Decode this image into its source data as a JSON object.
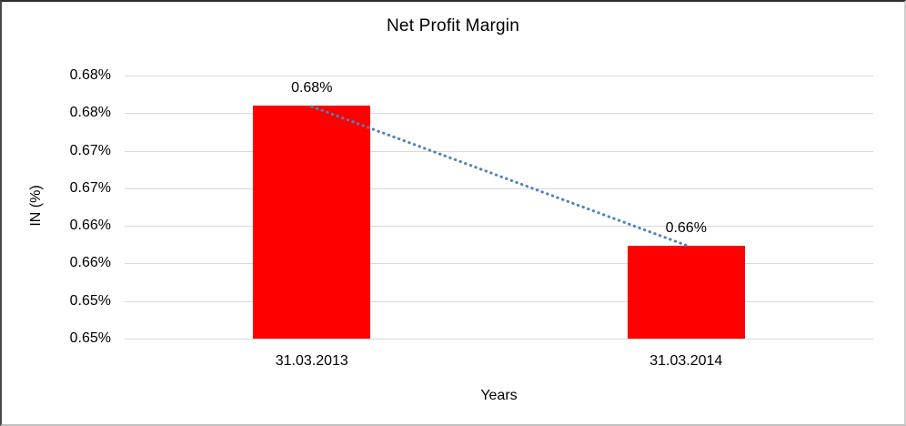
{
  "chart_data": {
    "type": "bar",
    "title": "Net Profit Margin",
    "xlabel": "Years",
    "ylabel": "IN (%)",
    "categories": [
      "31.03.2013",
      "31.03.2014"
    ],
    "values": [
      0.676,
      0.6573
    ],
    "data_labels": [
      "0.68%",
      "0.66%"
    ],
    "unit": "percent",
    "ylim": [
      0.645,
      0.68
    ],
    "ytick_step": 0.005,
    "ytick_labels_bottom_to_top": [
      "0.65%",
      "0.65%",
      "0.66%",
      "0.66%",
      "0.67%",
      "0.67%",
      "0.68%",
      "0.68%"
    ],
    "grid": true,
    "legend": "none",
    "colors": {
      "bar": "#ff0000",
      "gridline": "#d9d9d9",
      "trendline": "#4f81bd",
      "text": "#000000"
    },
    "trendline": {
      "style": "dotted",
      "connects": "tops of the two bars, declining left to right"
    }
  }
}
